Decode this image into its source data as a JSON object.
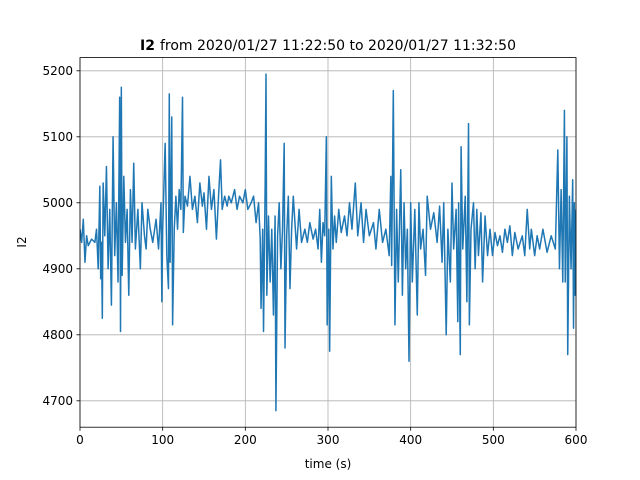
{
  "chart_data": {
    "type": "line",
    "title_bold": "I2",
    "title": "from 2020/01/27 11:22:50 to 2020/01/27 11:32:50",
    "xlabel": "time (s)",
    "ylabel": "I2",
    "xlim": [
      0,
      600
    ],
    "ylim": [
      4660,
      5220
    ],
    "xticks": [
      0,
      100,
      200,
      300,
      400,
      500,
      600
    ],
    "yticks": [
      4700,
      4800,
      4900,
      5000,
      5100,
      5200
    ],
    "grid": true,
    "series": [
      {
        "color": "#1f77b4",
        "x": [
          0,
          2,
          4,
          6,
          8,
          10,
          14,
          18,
          20,
          22,
          24,
          25,
          26,
          27,
          28,
          30,
          32,
          34,
          36,
          38,
          40,
          42,
          44,
          46,
          48,
          49,
          50,
          51,
          53,
          55,
          57,
          59,
          61,
          63,
          65,
          67,
          70,
          73,
          75,
          78,
          80,
          82,
          85,
          88,
          92,
          95,
          98,
          99,
          100,
          103,
          105,
          107,
          108,
          109,
          111,
          112,
          114,
          116,
          118,
          120,
          122,
          124,
          125,
          127,
          130,
          133,
          136,
          139,
          142,
          145,
          148,
          150,
          153,
          156,
          159,
          162,
          165,
          168,
          170,
          172,
          175,
          178,
          180,
          183,
          187,
          190,
          193,
          197,
          200,
          203,
          207,
          210,
          213,
          216,
          218,
          219,
          221,
          222,
          224,
          225,
          226,
          228,
          230,
          232,
          234,
          236,
          237,
          239,
          241,
          243,
          245,
          247,
          248,
          250,
          252,
          254,
          256,
          258,
          262,
          265,
          268,
          272,
          275,
          278,
          282,
          285,
          288,
          290,
          292,
          294,
          296,
          298,
          299,
          301,
          302,
          304,
          306,
          308,
          310,
          313,
          316,
          320,
          323,
          326,
          329,
          333,
          336,
          340,
          343,
          346,
          350,
          355,
          358,
          362,
          366,
          370,
          374,
          376,
          377,
          379,
          381,
          383,
          385,
          388,
          390,
          392,
          394,
          396,
          398,
          400,
          402,
          405,
          408,
          410,
          412,
          415,
          418,
          420,
          424,
          428,
          432,
          435,
          438,
          440,
          443,
          445,
          448,
          450,
          452,
          455,
          457,
          458,
          460,
          461,
          463,
          466,
          468,
          470,
          471,
          473,
          476,
          478,
          480,
          482,
          485,
          487,
          490,
          493,
          496,
          499,
          502,
          505,
          508,
          511,
          514,
          517,
          520,
          523,
          526,
          530,
          535,
          538,
          541,
          544,
          546,
          550,
          553,
          556,
          560,
          565,
          570,
          575,
          578,
          580,
          582,
          584,
          586,
          587,
          589,
          590,
          592,
          594,
          596,
          597,
          598,
          599,
          600
        ],
        "values": [
          4960,
          4940,
          4975,
          4910,
          4950,
          4935,
          4945,
          4940,
          4960,
          4900,
          5025,
          4885,
          4940,
          4825,
          5030,
          4950,
          5055,
          4900,
          4990,
          4845,
          5100,
          4920,
          5000,
          4880,
          5160,
          4805,
          5175,
          4890,
          5040,
          4940,
          4990,
          4860,
          5020,
          4940,
          5060,
          4930,
          4990,
          4900,
          5000,
          4950,
          4930,
          4990,
          4960,
          4940,
          4975,
          4930,
          5000,
          4850,
          4960,
          5090,
          4920,
          4870,
          5165,
          4910,
          5130,
          4815,
          4960,
          5010,
          4960,
          5020,
          4990,
          5160,
          4955,
          5010,
          4995,
          5040,
          4990,
          5010,
          4970,
          5030,
          4995,
          5015,
          4960,
          5040,
          4990,
          5020,
          4945,
          5020,
          5065,
          4990,
          5010,
          4995,
          5010,
          5000,
          5020,
          4990,
          5010,
          5000,
          5020,
          4990,
          5000,
          5010,
          4970,
          5000,
          4945,
          4840,
          4960,
          4805,
          5030,
          5195,
          4860,
          4980,
          4880,
          4960,
          4830,
          4980,
          4685,
          4950,
          5000,
          4900,
          4960,
          5090,
          4780,
          4950,
          5010,
          4870,
          4960,
          5010,
          4930,
          4990,
          4940,
          4960,
          4940,
          4970,
          4945,
          4960,
          4930,
          4990,
          4910,
          4970,
          4950,
          5100,
          4815,
          4960,
          4775,
          5040,
          4930,
          4980,
          4940,
          4990,
          4955,
          4980,
          4950,
          5000,
          4960,
          5030,
          4950,
          5000,
          4940,
          4990,
          4950,
          4970,
          4930,
          4990,
          4940,
          4960,
          4920,
          5040,
          4905,
          5170,
          4815,
          4990,
          4880,
          5050,
          4860,
          5000,
          4900,
          4960,
          4760,
          5000,
          4880,
          4990,
          4830,
          5000,
          4930,
          4960,
          4890,
          5010,
          4960,
          4985,
          4940,
          4995,
          4910,
          5000,
          4800,
          4960,
          4880,
          5030,
          4930,
          4990,
          4820,
          5000,
          4770,
          5085,
          4930,
          5010,
          4850,
          5120,
          4815,
          4960,
          5000,
          4900,
          4990,
          4920,
          4985,
          4880,
          4980,
          4920,
          4960,
          4920,
          4955,
          4935,
          4950,
          4925,
          4960,
          4940,
          4965,
          4920,
          4955,
          4930,
          4950,
          4920,
          4990,
          4930,
          4960,
          4920,
          4950,
          4930,
          4960,
          4925,
          4950,
          4930,
          5080,
          4900,
          5020,
          4880,
          5140,
          4880,
          5100,
          4770,
          5010,
          4900,
          5035,
          4810,
          5000,
          4860,
          4990
        ]
      }
    ]
  }
}
